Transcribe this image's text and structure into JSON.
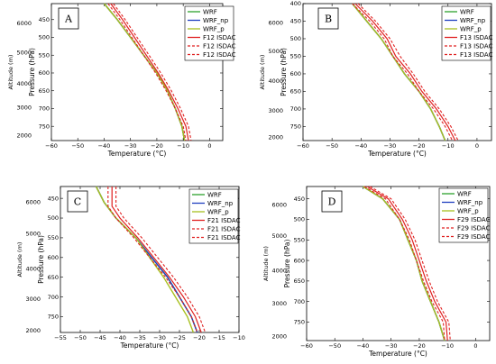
{
  "chart_data": [
    {
      "type": "line",
      "panel_label": "A",
      "xlabel": "Temperature (°C)",
      "ylabel": "Pressure (hPa)",
      "y2label": "Altitude (m)",
      "xlim": [
        -60,
        5
      ],
      "ylim": [
        790,
        405
      ],
      "xticks": [
        -60,
        -50,
        -40,
        -30,
        -20,
        -10,
        0
      ],
      "yticks": [
        450,
        500,
        550,
        600,
        650,
        700,
        750
      ],
      "y2ticks": [
        {
          "label": "6000",
          "p": 460
        },
        {
          "label": "5000",
          "p": 542
        },
        {
          "label": "4000",
          "p": 630
        },
        {
          "label": "3000",
          "p": 697
        },
        {
          "label": "2000",
          "p": 775
        }
      ],
      "legend": [
        "WRF",
        "WRF_np",
        "WRF_p",
        "F12 ISDAC",
        "F12 ISDAC",
        "F12 ISDAC"
      ],
      "series": [
        {
          "name": "WRF",
          "color": "#2ca02c",
          "style": "solid",
          "x": [
            -40,
            -35,
            -30,
            -25,
            -20,
            -16,
            -13,
            -10.5,
            -9.5
          ],
          "y": [
            405,
            450,
            500,
            550,
            600,
            650,
            700,
            750,
            790
          ]
        },
        {
          "name": "WRF_np",
          "color": "#1f3fbf",
          "style": "solid",
          "x": [
            -40,
            -35,
            -30,
            -25,
            -20,
            -16,
            -13,
            -10.5,
            -9.5
          ],
          "y": [
            405,
            450,
            500,
            550,
            600,
            650,
            700,
            750,
            790
          ]
        },
        {
          "name": "WRF_p",
          "color": "#a8c020",
          "style": "solid",
          "x": [
            -40,
            -35,
            -30,
            -25,
            -20,
            -16,
            -13,
            -10.5,
            -9.5
          ],
          "y": [
            405,
            450,
            500,
            550,
            600,
            650,
            700,
            750,
            790
          ]
        },
        {
          "name": "F12 ISDAC",
          "color": "#e02020",
          "style": "solid",
          "x": [
            -37.5,
            -33,
            -28.5,
            -24,
            -19.5,
            -15.5,
            -12,
            -9,
            -8
          ],
          "y": [
            405,
            450,
            500,
            550,
            600,
            650,
            700,
            750,
            790
          ]
        },
        {
          "name": "F12 ISDAC",
          "color": "#e02020",
          "style": "dashed",
          "x": [
            -36.5,
            -32,
            -27.5,
            -23,
            -18.5,
            -14.5,
            -11,
            -8,
            -7
          ],
          "y": [
            405,
            450,
            500,
            550,
            600,
            650,
            700,
            750,
            790
          ]
        },
        {
          "name": "F12 ISDAC",
          "color": "#e02020",
          "style": "dashed",
          "x": [
            -38.5,
            -34,
            -29.5,
            -25,
            -20.5,
            -16.5,
            -13,
            -10,
            -9
          ],
          "y": [
            405,
            450,
            500,
            550,
            600,
            650,
            700,
            750,
            790
          ]
        }
      ]
    },
    {
      "type": "line",
      "panel_label": "B",
      "xlabel": "Temperature (°C)",
      "ylabel": "Pressure (hPa)",
      "y2label": "Altitude (m)",
      "xlim": [
        -60,
        5
      ],
      "ylim": [
        790,
        400
      ],
      "xticks": [
        -60,
        -50,
        -40,
        -30,
        -20,
        -10,
        0
      ],
      "yticks": [
        400,
        450,
        500,
        550,
        600,
        650,
        700,
        750
      ],
      "y2ticks": [
        {
          "label": "6000",
          "p": 455
        },
        {
          "label": "5000",
          "p": 535
        },
        {
          "label": "4000",
          "p": 620
        },
        {
          "label": "3000",
          "p": 705
        },
        {
          "label": "2000",
          "p": 780
        }
      ],
      "legend": [
        "WRF",
        "WRF_np",
        "WRF_p",
        "F13 ISDAC",
        "F13 ISDAC",
        "F13 ISDAC"
      ],
      "series": [
        {
          "name": "WRF",
          "color": "#2ca02c",
          "style": "solid",
          "x": [
            -43,
            -38,
            -33,
            -29,
            -25,
            -20,
            -16,
            -13,
            -11
          ],
          "y": [
            400,
            450,
            500,
            550,
            600,
            650,
            700,
            750,
            790
          ]
        },
        {
          "name": "WRF_np",
          "color": "#1f3fbf",
          "style": "solid",
          "x": [
            -43,
            -38,
            -33,
            -29,
            -25,
            -20,
            -16,
            -13,
            -11
          ],
          "y": [
            400,
            450,
            500,
            550,
            600,
            650,
            700,
            750,
            790
          ]
        },
        {
          "name": "WRF_p",
          "color": "#a8c020",
          "style": "solid",
          "x": [
            -43,
            -38,
            -33,
            -29,
            -25,
            -20,
            -16,
            -13,
            -11
          ],
          "y": [
            400,
            450,
            500,
            550,
            600,
            650,
            700,
            750,
            790
          ]
        },
        {
          "name": "F13 ISDAC",
          "color": "#e02020",
          "style": "solid",
          "x": [
            -42,
            -36,
            -31,
            -28,
            -23,
            -19,
            -14,
            -10,
            -7.5
          ],
          "y": [
            400,
            450,
            500,
            550,
            600,
            650,
            700,
            750,
            790
          ]
        },
        {
          "name": "F13 ISDAC",
          "color": "#e02020",
          "style": "dashed",
          "x": [
            -41,
            -35,
            -30,
            -26.5,
            -22,
            -18,
            -13,
            -9,
            -6.5
          ],
          "y": [
            400,
            450,
            500,
            550,
            600,
            650,
            700,
            750,
            790
          ]
        },
        {
          "name": "F13 ISDAC",
          "color": "#e02020",
          "style": "dashed",
          "x": [
            -43,
            -37,
            -32,
            -29,
            -24,
            -20,
            -15,
            -11,
            -8.5
          ],
          "y": [
            400,
            450,
            500,
            550,
            600,
            650,
            700,
            750,
            790
          ]
        }
      ]
    },
    {
      "type": "line",
      "panel_label": "C",
      "xlabel": "Temperature (°C)",
      "ylabel": "Pressure (hPa)",
      "y2label": "Altitude (m)",
      "xlim": [
        -55,
        -10
      ],
      "ylim": [
        790,
        420
      ],
      "xticks": [
        -55,
        -50,
        -45,
        -40,
        -35,
        -30,
        -25,
        -20,
        -15,
        -10
      ],
      "yticks": [
        450,
        500,
        550,
        600,
        650,
        700,
        750
      ],
      "y2ticks": [
        {
          "label": "6000",
          "p": 460
        },
        {
          "label": "5000",
          "p": 540
        },
        {
          "label": "4000",
          "p": 628
        },
        {
          "label": "3000",
          "p": 705
        },
        {
          "label": "2000",
          "p": 785
        }
      ],
      "legend": [
        "WRF",
        "WRF_np",
        "WRF_p",
        "F21 ISDAC",
        "F21 ISDAC",
        "F21 ISDAC"
      ],
      "series": [
        {
          "name": "WRF",
          "color": "#2ca02c",
          "style": "solid",
          "x": [
            -46,
            -44,
            -41,
            -36,
            -32,
            -28,
            -25,
            -22,
            -20.5
          ],
          "y": [
            420,
            460,
            500,
            550,
            600,
            650,
            700,
            750,
            790
          ]
        },
        {
          "name": "WRF_np",
          "color": "#1f3fbf",
          "style": "solid",
          "x": [
            -46,
            -44,
            -41,
            -36,
            -32,
            -28,
            -25,
            -22,
            -20.5
          ],
          "y": [
            420,
            460,
            500,
            550,
            600,
            650,
            700,
            750,
            790
          ]
        },
        {
          "name": "WRF_p",
          "color": "#a8c020",
          "style": "solid",
          "x": [
            -46,
            -44,
            -41,
            -36,
            -32.5,
            -29,
            -26,
            -23,
            -21.5
          ],
          "y": [
            420,
            460,
            500,
            550,
            600,
            650,
            700,
            750,
            790
          ]
        },
        {
          "name": "F21 ISDAC",
          "color": "#e02020",
          "style": "solid",
          "x": [
            -42,
            -42,
            -40,
            -35.5,
            -31.5,
            -27.5,
            -24,
            -21,
            -19.5
          ],
          "y": [
            420,
            470,
            500,
            550,
            600,
            650,
            700,
            750,
            790
          ]
        },
        {
          "name": "F21 ISDAC",
          "color": "#e02020",
          "style": "dashed",
          "x": [
            -41,
            -41,
            -39,
            -34.5,
            -30.5,
            -26.5,
            -23,
            -20,
            -18.5
          ],
          "y": [
            420,
            470,
            500,
            550,
            600,
            650,
            700,
            750,
            790
          ]
        },
        {
          "name": "F21 ISDAC",
          "color": "#e02020",
          "style": "dashed",
          "x": [
            -43,
            -43,
            -41,
            -36.5,
            -32.5,
            -28.5,
            -25,
            -22,
            -20.5
          ],
          "y": [
            420,
            470,
            500,
            550,
            600,
            650,
            700,
            750,
            790
          ]
        }
      ]
    },
    {
      "type": "line",
      "panel_label": "D",
      "xlabel": "Temperature (°C)",
      "ylabel": "Pressure (hPa)",
      "y2label": "Altitude (m)",
      "xlim": [
        -60,
        5
      ],
      "ylim": [
        795,
        420
      ],
      "xticks": [
        -60,
        -50,
        -40,
        -30,
        -20,
        -10,
        0
      ],
      "yticks": [
        450,
        500,
        550,
        600,
        650,
        700,
        750
      ],
      "y2ticks": [
        {
          "label": "6000",
          "p": 465
        },
        {
          "label": "5000",
          "p": 540
        },
        {
          "label": "4000",
          "p": 625
        },
        {
          "label": "3000",
          "p": 705
        },
        {
          "label": "2000",
          "p": 785
        }
      ],
      "legend": [
        "WRF",
        "WRF_np",
        "WRF_p",
        "F29 ISDAC",
        "F29 ISDAC",
        "F29 ISDAC"
      ],
      "series": [
        {
          "name": "WRF",
          "color": "#2ca02c",
          "style": "solid",
          "x": [
            -40,
            -33,
            -27,
            -24,
            -21,
            -19,
            -16,
            -13,
            -11
          ],
          "y": [
            420,
            450,
            500,
            550,
            600,
            650,
            700,
            750,
            795
          ]
        },
        {
          "name": "WRF_np",
          "color": "#1f3fbf",
          "style": "solid",
          "x": [
            -40,
            -33,
            -27,
            -24,
            -21,
            -19,
            -16,
            -13,
            -11
          ],
          "y": [
            420,
            450,
            500,
            550,
            600,
            650,
            700,
            750,
            795
          ]
        },
        {
          "name": "WRF_p",
          "color": "#a8c020",
          "style": "solid",
          "x": [
            -40,
            -33,
            -27,
            -24,
            -21,
            -19,
            -16,
            -13,
            -11
          ],
          "y": [
            420,
            450,
            500,
            550,
            600,
            650,
            700,
            750,
            795
          ]
        },
        {
          "name": "F29 ISDAC",
          "color": "#e02020",
          "style": "solid",
          "x": [
            -38.5,
            -31,
            -26,
            -22.5,
            -20,
            -17.5,
            -14.5,
            -10.5,
            -10
          ],
          "y": [
            420,
            450,
            500,
            550,
            600,
            650,
            700,
            750,
            795
          ]
        },
        {
          "name": "F29 ISDAC",
          "color": "#e02020",
          "style": "dashed",
          "x": [
            -37.5,
            -30,
            -25,
            -21.5,
            -19,
            -16.5,
            -13.5,
            -9.5,
            -9
          ],
          "y": [
            420,
            450,
            500,
            550,
            600,
            650,
            700,
            750,
            795
          ]
        },
        {
          "name": "F29 ISDAC",
          "color": "#e02020",
          "style": "dashed",
          "x": [
            -39.5,
            -32,
            -27,
            -23.5,
            -21,
            -18.5,
            -15.5,
            -11.5,
            -11
          ],
          "y": [
            420,
            450,
            500,
            550,
            600,
            650,
            700,
            750,
            795
          ]
        }
      ]
    }
  ]
}
